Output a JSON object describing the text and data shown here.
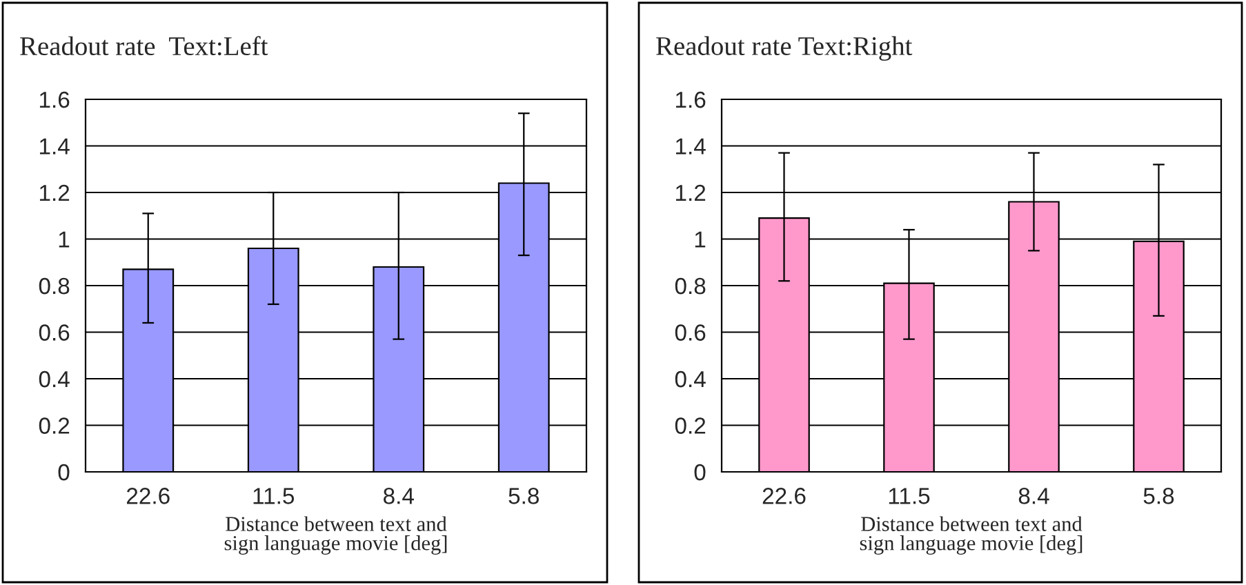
{
  "chart_data": [
    {
      "type": "bar",
      "title": "Readout rate  Text:Left",
      "xlabel": "Distance between text and\nsign language movie [deg]",
      "categories": [
        "22.6",
        "11.5",
        "8.4",
        "5.8"
      ],
      "values": [
        0.87,
        0.96,
        0.88,
        1.24
      ],
      "color": "#9999ff",
      "errors": [
        [
          0.64,
          1.11
        ],
        [
          0.72,
          1.2
        ],
        [
          0.57,
          1.2
        ],
        [
          0.93,
          1.54
        ]
      ],
      "ylim": [
        0,
        1.6
      ],
      "yticks": [
        0,
        0.2,
        0.4,
        0.6,
        0.8,
        1,
        1.2,
        1.4,
        1.6
      ],
      "grid": "y"
    },
    {
      "type": "bar",
      "title": "Readout rate Text:Right",
      "xlabel": "Distance between text and\nsign language movie [deg]",
      "categories": [
        "22.6",
        "11.5",
        "8.4",
        "5.8"
      ],
      "values": [
        1.09,
        0.81,
        1.16,
        0.99
      ],
      "color": "#ff99cc",
      "errors": [
        [
          0.82,
          1.37
        ],
        [
          0.57,
          1.04
        ],
        [
          0.95,
          1.37
        ],
        [
          0.67,
          1.32
        ]
      ],
      "ylim": [
        0,
        1.6
      ],
      "yticks": [
        0,
        0.2,
        0.4,
        0.6,
        0.8,
        1,
        1.2,
        1.4,
        1.6
      ],
      "grid": "y"
    }
  ]
}
